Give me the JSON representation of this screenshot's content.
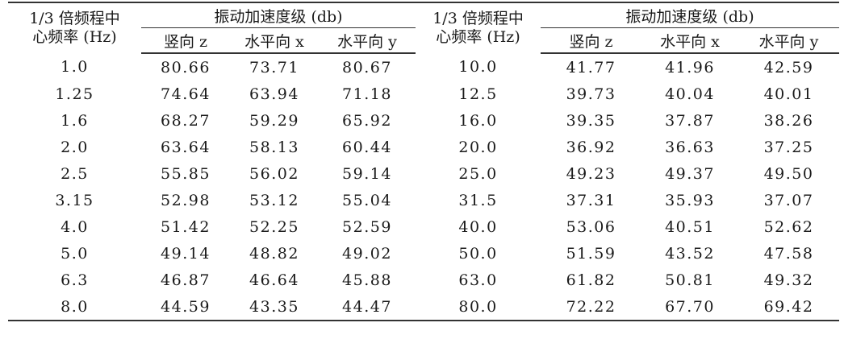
{
  "header": {
    "freq_col_label": "1/3 倍频程中心频率 (Hz)",
    "freq_col_line1": "1/3 倍频程中",
    "freq_col_line2": "心频率 (Hz)",
    "group_label": "振动加速度级 (db)",
    "sub_columns": [
      "竖向 z",
      "水平向 x",
      "水平向 y"
    ]
  },
  "rows": [
    {
      "f1": "1.0",
      "z1": "80.66",
      "x1": "73.71",
      "y1": "80.67",
      "f2": "10.0",
      "z2": "41.77",
      "x2": "41.96",
      "y2": "42.59"
    },
    {
      "f1": "1.25",
      "z1": "74.64",
      "x1": "63.94",
      "y1": "71.18",
      "f2": "12.5",
      "z2": "39.73",
      "x2": "40.04",
      "y2": "40.01"
    },
    {
      "f1": "1.6",
      "z1": "68.27",
      "x1": "59.29",
      "y1": "65.92",
      "f2": "16.0",
      "z2": "39.35",
      "x2": "37.87",
      "y2": "38.26"
    },
    {
      "f1": "2.0",
      "z1": "63.64",
      "x1": "58.13",
      "y1": "60.44",
      "f2": "20.0",
      "z2": "36.92",
      "x2": "36.63",
      "y2": "37.25"
    },
    {
      "f1": "2.5",
      "z1": "55.85",
      "x1": "56.02",
      "y1": "59.14",
      "f2": "25.0",
      "z2": "49.23",
      "x2": "49.37",
      "y2": "49.50"
    },
    {
      "f1": "3.15",
      "z1": "52.98",
      "x1": "53.12",
      "y1": "55.04",
      "f2": "31.5",
      "z2": "37.31",
      "x2": "35.93",
      "y2": "37.07"
    },
    {
      "f1": "4.0",
      "z1": "51.42",
      "x1": "52.25",
      "y1": "52.59",
      "f2": "40.0",
      "z2": "53.06",
      "x2": "40.51",
      "y2": "52.62"
    },
    {
      "f1": "5.0",
      "z1": "49.14",
      "x1": "48.82",
      "y1": "49.02",
      "f2": "50.0",
      "z2": "51.59",
      "x2": "43.52",
      "y2": "47.58"
    },
    {
      "f1": "6.3",
      "z1": "46.87",
      "x1": "46.64",
      "y1": "45.88",
      "f2": "63.0",
      "z2": "61.82",
      "x2": "50.81",
      "y2": "49.32"
    },
    {
      "f1": "8.0",
      "z1": "44.59",
      "x1": "43.35",
      "y1": "44.47",
      "f2": "80.0",
      "z2": "72.22",
      "x2": "67.70",
      "y2": "69.42"
    }
  ]
}
